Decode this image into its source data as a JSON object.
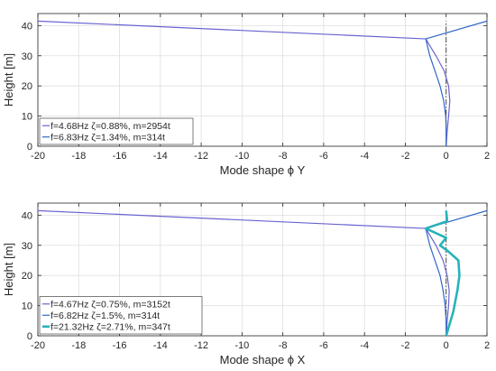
{
  "chart_data": [
    {
      "type": "line",
      "xlabel": "Mode shape ϕ Y",
      "ylabel": "Height [m]",
      "xlim": [
        -20,
        2
      ],
      "ylim": [
        0,
        44
      ],
      "xticks": [
        -20,
        -18,
        -16,
        -14,
        -12,
        -10,
        -8,
        -6,
        -4,
        -2,
        0,
        2
      ],
      "yticks": [
        0,
        10,
        20,
        30,
        40
      ],
      "grid": true,
      "legend_position": "bottom-left",
      "reference_line": {
        "x": 0,
        "y_range": [
          0,
          41.5
        ],
        "style": "dash-dot"
      },
      "series": [
        {
          "name": "f=4.68Hz ζ=0.88%, m=2954t",
          "color": "#6a63d1",
          "width": 1.2,
          "points": [
            [
              0,
              0
            ],
            [
              0.05,
              5
            ],
            [
              0.12,
              10
            ],
            [
              0.18,
              15
            ],
            [
              0.12,
              20
            ],
            [
              -0.1,
              25
            ],
            [
              -0.5,
              30
            ],
            [
              -1.0,
              35.6
            ],
            [
              -20,
              41.5
            ]
          ]
        },
        {
          "name": "f=6.83Hz ζ=1.34%, m=314t",
          "color": "#2f66c9",
          "width": 1.2,
          "points": [
            [
              0,
              0
            ],
            [
              0.0,
              5
            ],
            [
              -0.02,
              10
            ],
            [
              -0.12,
              15
            ],
            [
              -0.3,
              20
            ],
            [
              -0.55,
              25
            ],
            [
              -0.8,
              30
            ],
            [
              -1.0,
              35.6
            ],
            [
              2,
              41.5
            ]
          ]
        }
      ]
    },
    {
      "type": "line",
      "xlabel": "Mode shape ϕ X",
      "ylabel": "Height [m]",
      "xlim": [
        -20,
        2
      ],
      "ylim": [
        0,
        44
      ],
      "xticks": [
        -20,
        -18,
        -16,
        -14,
        -12,
        -10,
        -8,
        -6,
        -4,
        -2,
        0,
        2
      ],
      "yticks": [
        0,
        10,
        20,
        30,
        40
      ],
      "grid": true,
      "legend_position": "bottom-left",
      "reference_line": {
        "x": 0,
        "y_range": [
          0,
          41.5
        ],
        "style": "dash-dot"
      },
      "series": [
        {
          "name": "f=4.67Hz ζ=0.75%, m=3152t",
          "color": "#6a63d1",
          "width": 1.2,
          "points": [
            [
              0,
              0
            ],
            [
              0.05,
              5
            ],
            [
              0.12,
              10
            ],
            [
              0.15,
              15
            ],
            [
              0.05,
              20
            ],
            [
              -0.15,
              25
            ],
            [
              -0.5,
              30
            ],
            [
              -1.0,
              35.6
            ],
            [
              -20,
              41.5
            ]
          ]
        },
        {
          "name": "f=6.82Hz ζ=1.5%, m=314t",
          "color": "#2f66c9",
          "width": 1.2,
          "points": [
            [
              0,
              0
            ],
            [
              0.0,
              5
            ],
            [
              -0.05,
              10
            ],
            [
              -0.15,
              15
            ],
            [
              -0.3,
              20
            ],
            [
              -0.55,
              25
            ],
            [
              -0.8,
              30
            ],
            [
              -1.0,
              35.6
            ],
            [
              2,
              41.5
            ]
          ]
        },
        {
          "name": "f=21.32Hz ζ=2.71%, m=347t",
          "color": "#27b3b8",
          "width": 2.6,
          "points": [
            [
              0,
              0
            ],
            [
              0.35,
              8
            ],
            [
              0.55,
              15
            ],
            [
              0.65,
              20
            ],
            [
              0.6,
              25
            ],
            [
              0.1,
              28
            ],
            [
              -0.3,
              30
            ],
            [
              0.0,
              32.5
            ],
            [
              -1.0,
              35.6
            ],
            [
              0.05,
              38
            ],
            [
              0.0,
              41.5
            ]
          ]
        }
      ]
    }
  ]
}
